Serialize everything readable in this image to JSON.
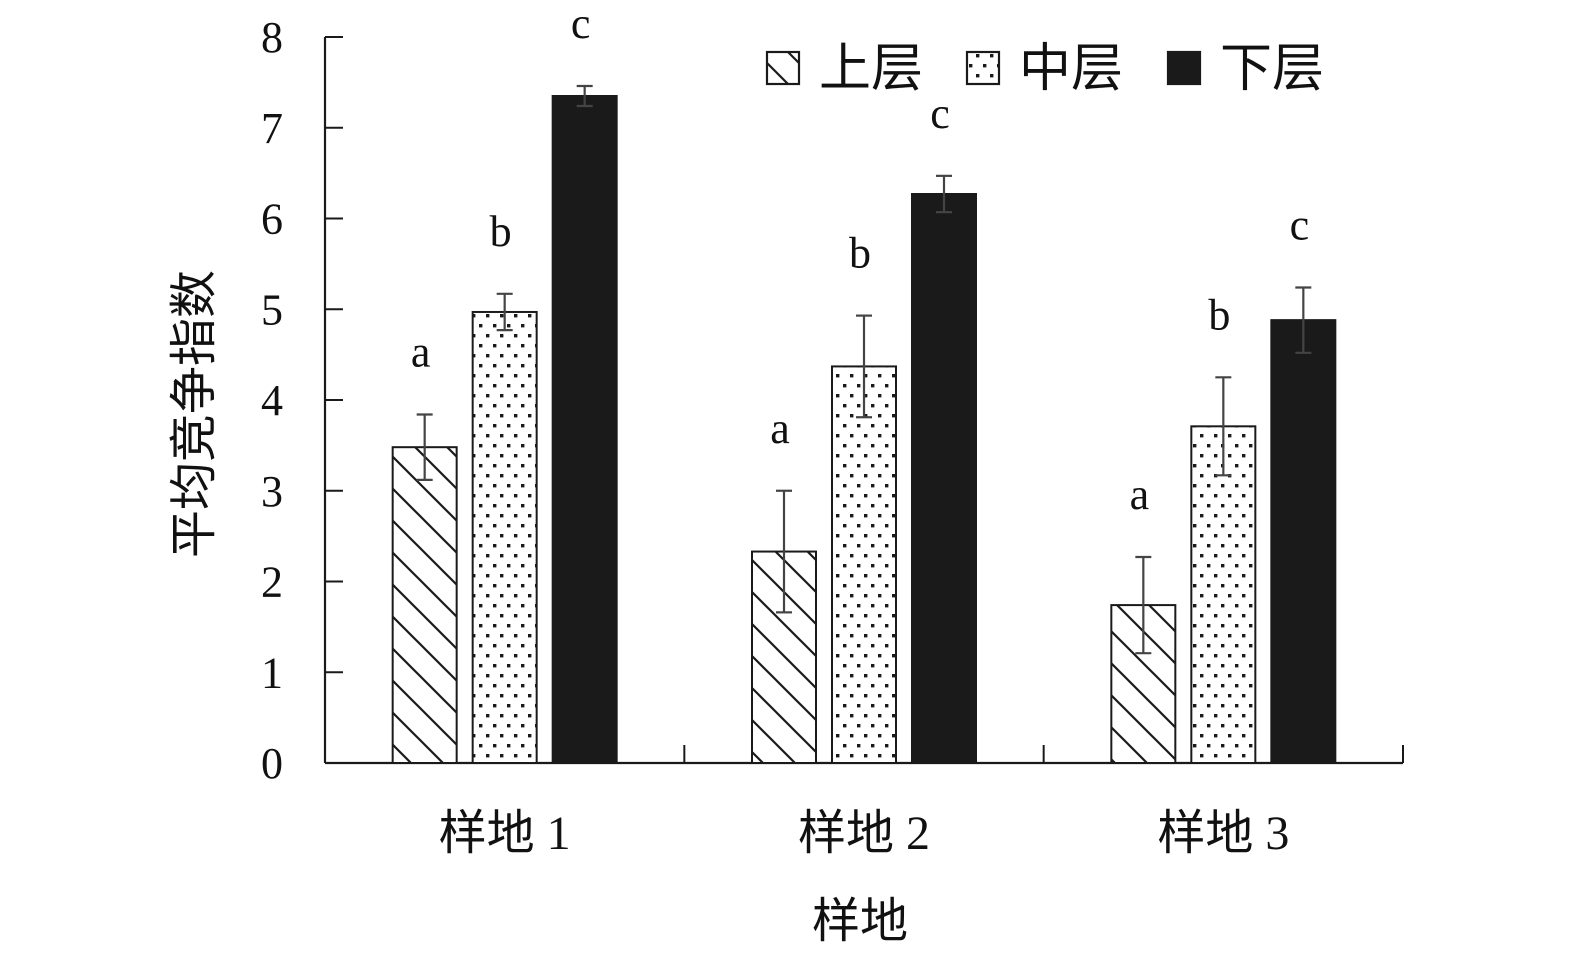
{
  "chart_data": {
    "type": "bar",
    "title": "",
    "xlabel": "样地",
    "ylabel": "平均竞争指数",
    "ylim": [
      0,
      8
    ],
    "yticks": [
      "0",
      "1",
      "2",
      "3",
      "4",
      "5",
      "6",
      "7",
      "8"
    ],
    "categories": [
      "样地 1",
      "样地 2",
      "样地 3"
    ],
    "legend_position": "top-right",
    "series": [
      {
        "name": "上层",
        "pattern": "diagonal-hatch",
        "values": [
          3.48,
          2.33,
          1.74
        ],
        "errors": [
          0.36,
          0.67,
          0.53
        ],
        "labels": [
          "a",
          "a",
          "a"
        ]
      },
      {
        "name": "中层",
        "pattern": "dots",
        "values": [
          4.97,
          4.37,
          3.71
        ],
        "errors": [
          0.2,
          0.56,
          0.54
        ],
        "labels": [
          "b",
          "b",
          "b"
        ]
      },
      {
        "name": "下层",
        "pattern": "solid",
        "values": [
          7.35,
          6.27,
          4.88
        ],
        "errors": [
          0.11,
          0.2,
          0.36
        ],
        "labels": [
          "c",
          "c",
          "c"
        ]
      }
    ],
    "colors": {
      "axis": "#1a1a1a",
      "solid_fill": "#1a1a1a",
      "error_bar": "#444444"
    }
  }
}
